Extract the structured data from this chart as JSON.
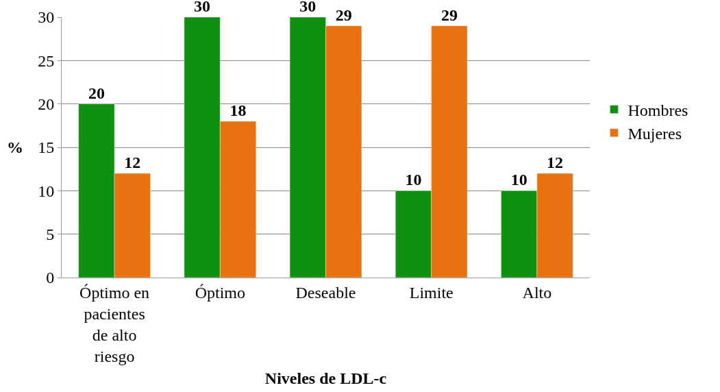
{
  "chart_data": {
    "type": "bar",
    "xlabel": "Niveles de LDL-c",
    "ylabel": "%",
    "categories": [
      "Óptimo en pacientes de alto riesgo",
      "Óptimo",
      "Deseable",
      "Limite",
      "Alto"
    ],
    "series": [
      {
        "name": "Hombres",
        "color": "#109010",
        "values": [
          20,
          30,
          30,
          10,
          10
        ]
      },
      {
        "name": "Mujeres",
        "color": "#e8720f",
        "values": [
          12,
          18,
          29,
          29,
          12
        ]
      }
    ],
    "ylim": [
      0,
      30
    ],
    "yticks": [
      0,
      5,
      10,
      15,
      20,
      25,
      30
    ],
    "grid": "y",
    "legend": "right",
    "data_labels": true
  }
}
